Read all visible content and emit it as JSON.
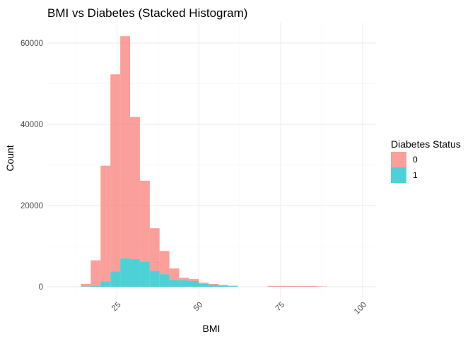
{
  "chart_data": {
    "type": "bar",
    "stacked": true,
    "title": "BMI vs Diabetes (Stacked Histogram)",
    "xlabel": "BMI",
    "ylabel": "Count",
    "xlim": [
      10,
      100
    ],
    "ylim": [
      0,
      65000
    ],
    "xticks": [
      25,
      50,
      75,
      100
    ],
    "yticks": [
      0,
      20000,
      40000,
      60000
    ],
    "grid": true,
    "legend": {
      "title": "Diabetes Status",
      "position": "right"
    },
    "bin_width": 3,
    "series": [
      {
        "name": "1",
        "color": "#00BFC4",
        "bins": [
          [
            14,
            17,
            100
          ],
          [
            17,
            20,
            300
          ],
          [
            20,
            23,
            1300
          ],
          [
            23,
            26,
            3800
          ],
          [
            26,
            29,
            7000
          ],
          [
            29,
            32,
            6800
          ],
          [
            32,
            35,
            6200
          ],
          [
            35,
            38,
            3900
          ],
          [
            38,
            41,
            3100
          ],
          [
            41,
            44,
            1700
          ],
          [
            44,
            47,
            1600
          ],
          [
            47,
            50,
            1400
          ],
          [
            50,
            53,
            700
          ],
          [
            53,
            56,
            500
          ],
          [
            56,
            59,
            300
          ],
          [
            59,
            62,
            150
          ]
        ]
      },
      {
        "name": "0",
        "color": "#F8766D",
        "bins": [
          [
            14,
            17,
            600
          ],
          [
            17,
            20,
            6200
          ],
          [
            20,
            23,
            28500
          ],
          [
            23,
            26,
            48500
          ],
          [
            26,
            29,
            54700
          ],
          [
            29,
            32,
            35000
          ],
          [
            32,
            35,
            19900
          ],
          [
            35,
            38,
            10500
          ],
          [
            38,
            41,
            5700
          ],
          [
            41,
            44,
            2800
          ],
          [
            44,
            47,
            600
          ],
          [
            47,
            50,
            500
          ],
          [
            50,
            53,
            300
          ],
          [
            53,
            56,
            200
          ],
          [
            56,
            59,
            150
          ],
          [
            59,
            62,
            100
          ],
          [
            71,
            74,
            200
          ],
          [
            74,
            77,
            200
          ],
          [
            77,
            80,
            200
          ],
          [
            80,
            83,
            200
          ],
          [
            83,
            86,
            200
          ],
          [
            86,
            89,
            100
          ]
        ]
      }
    ],
    "legend_order": [
      "0",
      "1"
    ]
  }
}
